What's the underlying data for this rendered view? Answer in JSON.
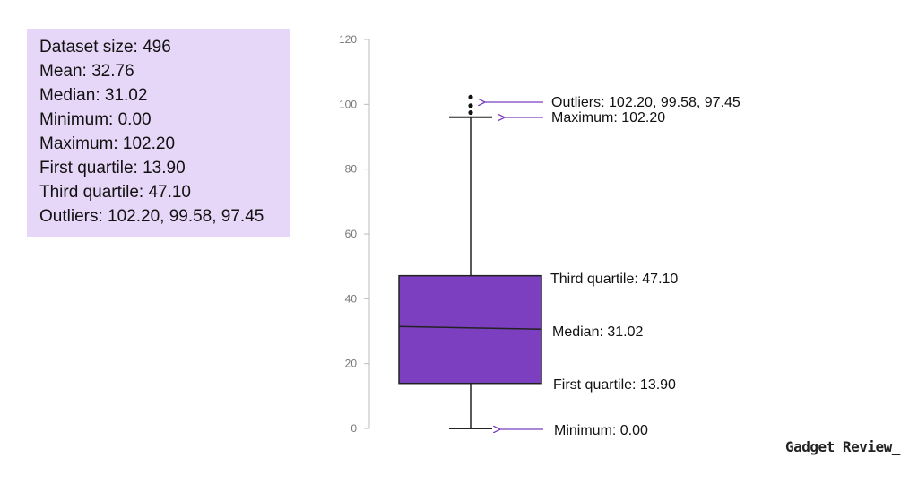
{
  "stats_panel": {
    "lines": [
      "Dataset size: 496",
      "Mean: 32.76",
      "Median: 31.02",
      "Minimum: 0.00",
      "Maximum: 102.20",
      "First quartile: 13.90",
      "Third quartile: 47.10",
      "Outliers: 102.20, 99.58, 97.45"
    ]
  },
  "chart_data": {
    "type": "boxplot",
    "y_ticks": [
      0,
      20,
      40,
      60,
      80,
      100,
      120
    ],
    "ylim": [
      0,
      120
    ],
    "box": {
      "min": 0.0,
      "q1": 13.9,
      "median": 31.02,
      "q3": 47.1,
      "max": 102.2,
      "whisker_top": 96,
      "outliers": [
        102.2,
        99.58,
        97.45
      ]
    },
    "annotations": [
      {
        "label": "Outliers: 102.20, 99.58, 97.45",
        "arrow": true
      },
      {
        "label": "Maximum: 102.20",
        "arrow": true
      },
      {
        "label": "Third quartile: 47.10",
        "arrow": false
      },
      {
        "label": "Median: 31.02",
        "arrow": false
      },
      {
        "label": "First quartile: 13.90",
        "arrow": false
      },
      {
        "label": "Minimum: 0.00",
        "arrow": true
      }
    ],
    "colors": {
      "box": "#7b3fbf",
      "arrow": "#7b3fbf",
      "axis": "#bbbbbb"
    },
    "grid": false
  },
  "brand": {
    "name": "Gadget Review_"
  }
}
